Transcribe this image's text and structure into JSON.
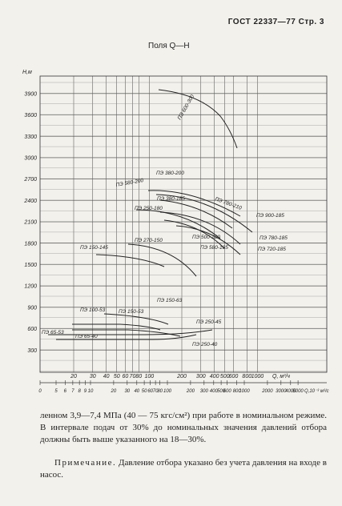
{
  "header": {
    "title": "ГОСТ 22337—77 Стр. 3"
  },
  "chart": {
    "title": "Поля Q—H",
    "y_label": "Н,м",
    "yticks": [
      300,
      600,
      900,
      1200,
      1500,
      1800,
      2100,
      2400,
      2700,
      3000,
      3300,
      3600,
      3900
    ],
    "top_ticks": [
      20,
      30,
      40,
      50,
      60,
      70,
      80,
      100,
      200,
      300,
      400,
      500,
      600,
      800,
      1000
    ],
    "top_unit": "Q, м³/ч",
    "bottom_ticks": [
      0,
      5,
      6,
      7,
      8,
      9,
      10,
      20,
      30,
      40,
      50,
      60,
      70,
      80,
      100,
      200,
      300,
      400,
      500,
      600,
      800,
      1000,
      2000,
      3000,
      4000,
      5000
    ],
    "bottom_unit": "Q,10⁻³ м³/с",
    "curve_labels": [
      "ПЭ 600-300",
      "ПЭ 580-200",
      "ПЭ 380-200",
      "ПЭ 780-210",
      "ПЭ 380-185",
      "ПЭ 250-180",
      "ПЭ 900-185",
      "ПЭ 500-180",
      "ПЭ 780-185",
      "ПЭ 580-185",
      "ПЭ 720-185",
      "ПЭ 270-150",
      "ПЭ 150-145",
      "ПЭ 150-63",
      "ПЭ 100-53",
      "ПЭ 150-53",
      "ПЭ 65-53",
      "ПЭ 65-40",
      "ПЭ 250-45",
      "ПЭ 250-40"
    ]
  },
  "text": {
    "paragraph": "ленном 3,9—7,4 МПа (40 — 75 кгс/см²) при работе в номинальном режиме. В интервале подач от 30% до номинальных значения давлений отбора должны быть выше указанного на 18—30%.",
    "note_label": "Примечание.",
    "note": "Давление отбора указано без учета давления на входе в насос."
  }
}
